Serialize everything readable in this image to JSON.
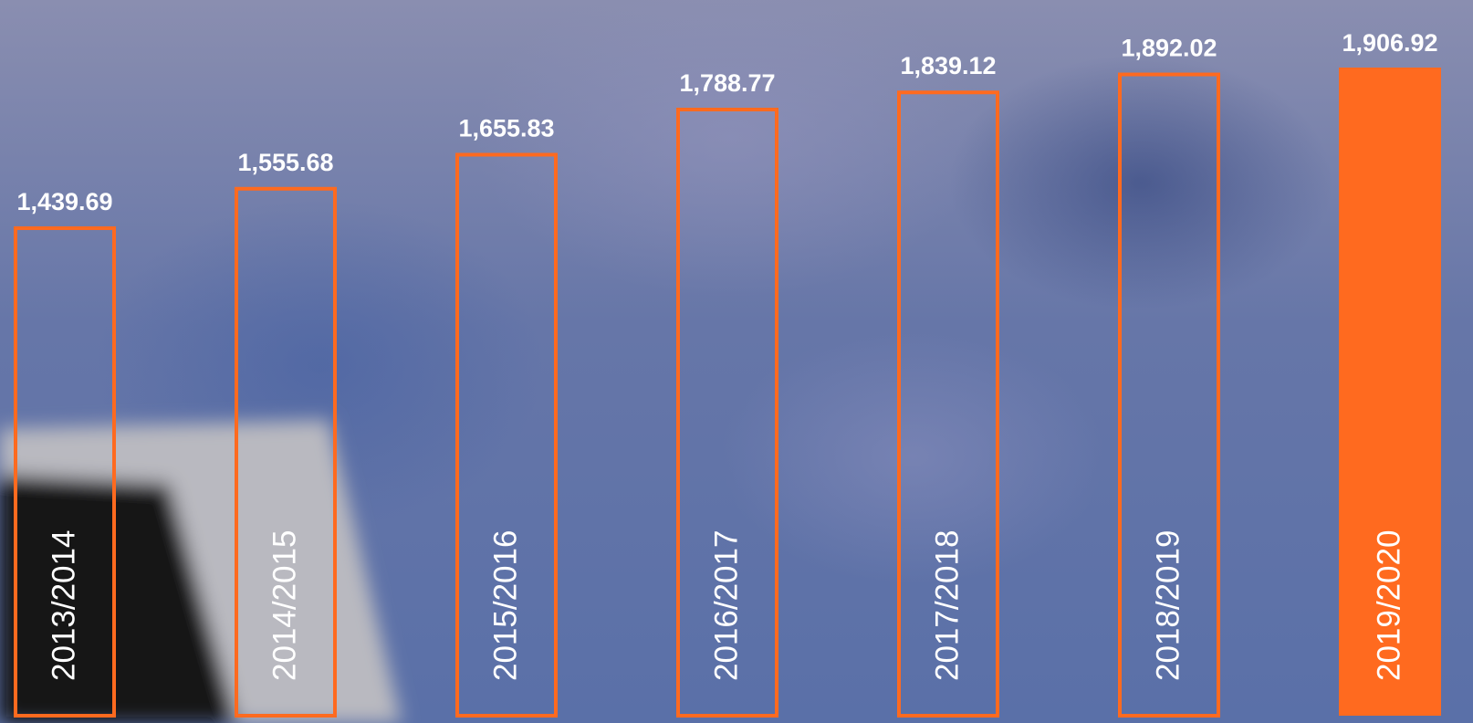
{
  "chart_data": {
    "type": "bar",
    "categories": [
      "2013/2014",
      "2014/2015",
      "2015/2016",
      "2016/2017",
      "2017/2018",
      "2018/2019",
      "2019/2020"
    ],
    "values": [
      1439.69,
      1555.68,
      1655.83,
      1788.77,
      1839.12,
      1892.02,
      1906.92
    ],
    "value_labels": [
      "1,439.69",
      "1,555.68",
      "1,655.83",
      "1,788.77",
      "1,839.12",
      "1,892.02",
      "1,906.92"
    ],
    "color": "#ff6a1f"
  }
}
